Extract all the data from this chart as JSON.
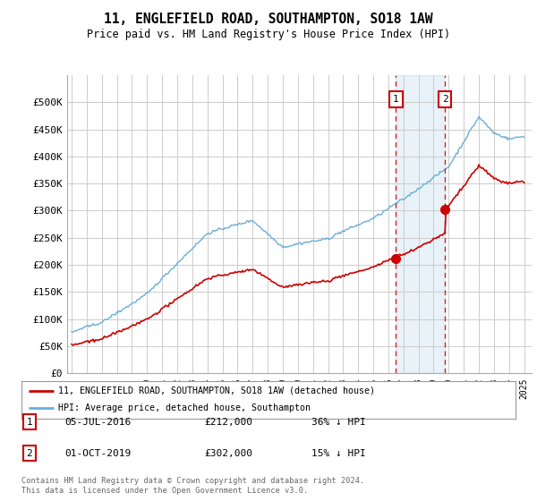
{
  "title": "11, ENGLEFIELD ROAD, SOUTHAMPTON, SO18 1AW",
  "subtitle": "Price paid vs. HM Land Registry's House Price Index (HPI)",
  "ylim": [
    0,
    550000
  ],
  "yticks": [
    0,
    50000,
    100000,
    150000,
    200000,
    250000,
    300000,
    350000,
    400000,
    450000,
    500000
  ],
  "ytick_labels": [
    "£0",
    "£50K",
    "£100K",
    "£150K",
    "£200K",
    "£250K",
    "£300K",
    "£350K",
    "£400K",
    "£450K",
    "£500K"
  ],
  "hpi_color": "#6baed6",
  "hpi_fill_color": "#ddeeff",
  "price_color": "#cc0000",
  "dashed_line_color": "#cc0000",
  "transaction1_date": 2016.5,
  "transaction1_price": 212000,
  "transaction2_date": 2019.75,
  "transaction2_price": 302000,
  "legend_line1": "11, ENGLEFIELD ROAD, SOUTHAMPTON, SO18 1AW (detached house)",
  "legend_line2": "HPI: Average price, detached house, Southampton",
  "table_row1": [
    "1",
    "05-JUL-2016",
    "£212,000",
    "36% ↓ HPI"
  ],
  "table_row2": [
    "2",
    "01-OCT-2019",
    "£302,000",
    "15% ↓ HPI"
  ],
  "footer": "Contains HM Land Registry data © Crown copyright and database right 2024.\nThis data is licensed under the Open Government Licence v3.0.",
  "background_color": "#ffffff",
  "grid_color": "#cccccc"
}
